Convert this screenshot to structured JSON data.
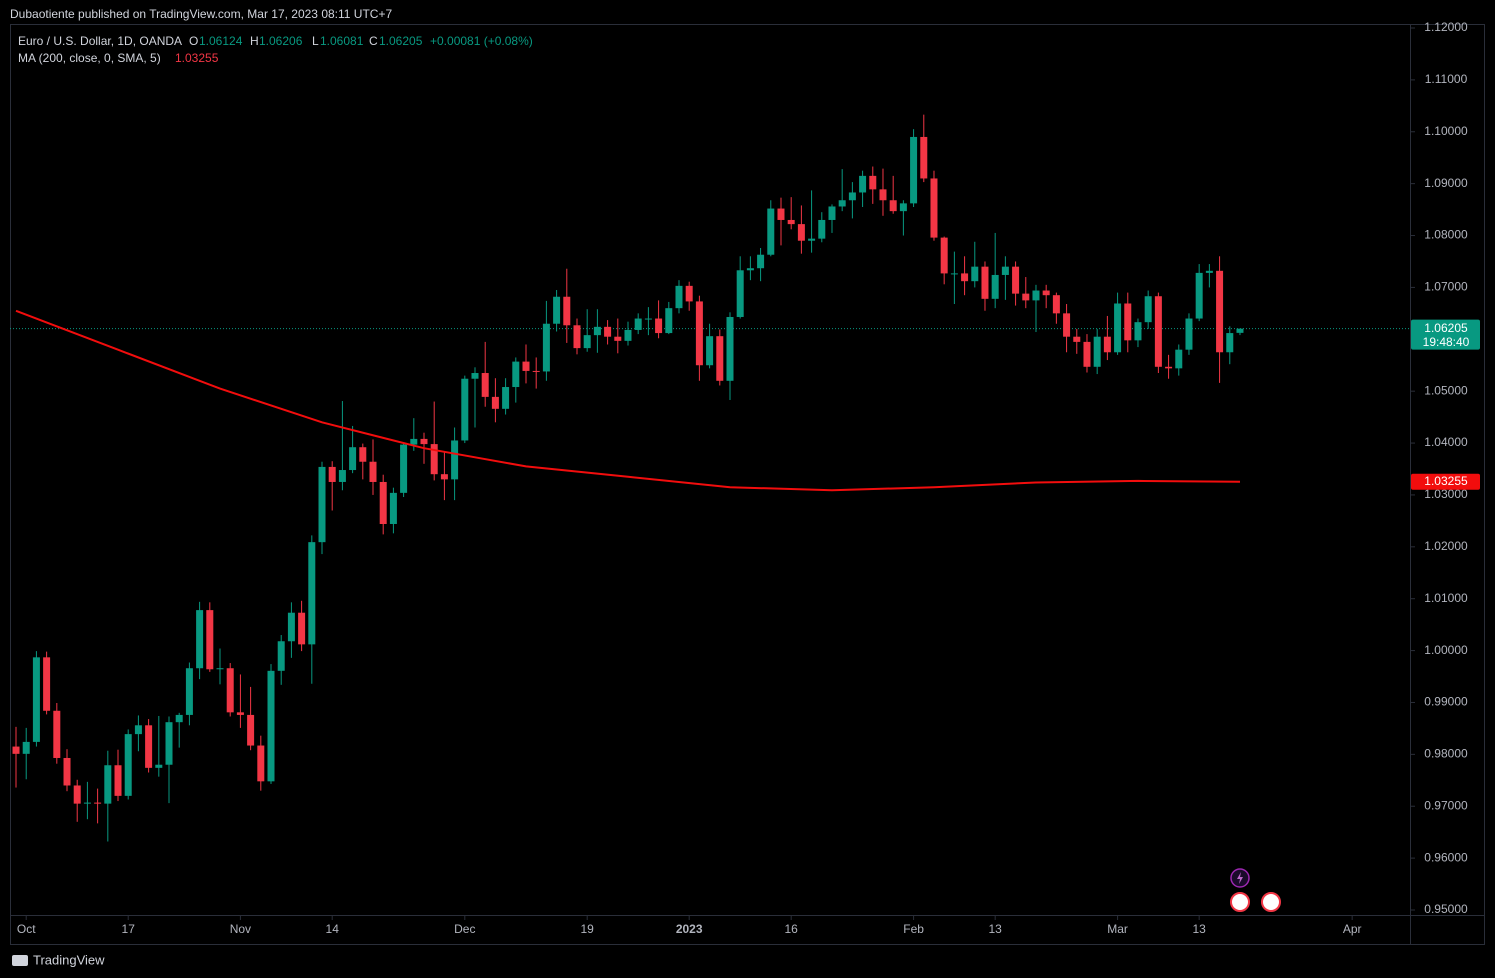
{
  "header": {
    "publisher": "Dubaotiente published on TradingView.com, Mar 17, 2023 08:11 UTC+7"
  },
  "legend": {
    "symbol": "Euro / U.S. Dollar, 1D, OANDA",
    "o": "O",
    "h": "H",
    "l": "L",
    "c": "C",
    "change": "+0.00081 (+0.08%)",
    "ma": "MA (200, close, 0, SMA, 5)"
  },
  "price_timer": "19:48:40",
  "footer": {
    "brand": "TradingView"
  },
  "chart_data": {
    "type": "candlestick",
    "up_color": "#089981",
    "down_color": "#f23645",
    "ma_color": "#f20d0d",
    "ylim": [
      0.95,
      1.12
    ],
    "yticks": [
      {
        "value": 1.12,
        "label": "1.12000"
      },
      {
        "value": 1.11,
        "label": "1.11000"
      },
      {
        "value": 1.1,
        "label": "1.10000"
      },
      {
        "value": 1.09,
        "label": "1.09000"
      },
      {
        "value": 1.08,
        "label": "1.08000"
      },
      {
        "value": 1.07,
        "label": "1.07000"
      },
      {
        "value": 1.06,
        "label": "1.06000"
      },
      {
        "value": 1.05,
        "label": "1.05000"
      },
      {
        "value": 1.04,
        "label": "1.04000"
      },
      {
        "value": 1.03,
        "label": "1.03000"
      },
      {
        "value": 1.02,
        "label": "1.02000"
      },
      {
        "value": 1.01,
        "label": "1.01000"
      },
      {
        "value": 1.0,
        "label": "1.00000"
      },
      {
        "value": 0.99,
        "label": "0.99000"
      },
      {
        "value": 0.98,
        "label": "0.98000"
      },
      {
        "value": 0.97,
        "label": "0.97000"
      },
      {
        "value": 0.96,
        "label": "0.96000"
      },
      {
        "value": 0.95,
        "label": "0.95000"
      }
    ],
    "xlim": [
      -1.57,
      136.67
    ],
    "xticks": [
      {
        "value": 1,
        "label": "Oct"
      },
      {
        "value": 11,
        "label": "17"
      },
      {
        "value": 22,
        "label": "Nov"
      },
      {
        "value": 31,
        "label": "14"
      },
      {
        "value": 44,
        "label": "Dec"
      },
      {
        "value": 56,
        "label": "19"
      },
      {
        "value": 66,
        "label": "2023"
      },
      {
        "value": 76,
        "label": "16"
      },
      {
        "value": 88,
        "label": "Feb"
      },
      {
        "value": 96,
        "label": "13"
      },
      {
        "value": 108,
        "label": "Mar"
      },
      {
        "value": 116,
        "label": "13"
      },
      {
        "value": 131,
        "label": "Apr"
      }
    ],
    "open": [
      0.9815,
      0.9801,
      0.9824,
      0.9987,
      0.9884,
      0.9793,
      0.974,
      0.9705,
      0.9707,
      0.9705,
      0.9779,
      0.972,
      0.9839,
      0.9856,
      0.9774,
      0.978,
      0.9862,
      0.9876,
      0.9966,
      1.0078,
      0.9964,
      0.9966,
      0.9881,
      0.9876,
      0.9817,
      0.9748,
      0.9961,
      1.0018,
      1.0073,
      1.0012,
      1.0209,
      1.0354,
      1.0325,
      1.0348,
      1.0392,
      1.0364,
      1.0325,
      1.0244,
      1.0304,
      1.0397,
      1.0408,
      1.0398,
      1.034,
      1.033,
      1.0405,
      1.0524,
      1.0535,
      1.0489,
      1.0466,
      1.0508,
      1.0557,
      1.0539,
      1.0538,
      1.063,
      1.0682,
      1.0627,
      1.0583,
      1.0608,
      1.0624,
      1.0605,
      1.0597,
      1.0618,
      1.064,
      1.064,
      1.0612,
      1.066,
      1.0703,
      1.0673,
      1.055,
      1.0606,
      1.052,
      1.0643,
      1.0733,
      1.0737,
      1.0763,
      1.0852,
      1.083,
      1.0822,
      1.079,
      1.0794,
      1.083,
      1.0856,
      1.0868,
      1.0883,
      1.0915,
      1.0889,
      1.0868,
      1.0847,
      1.0862,
      1.099,
      1.091,
      1.0796,
      1.0727,
      1.0727,
      1.0712,
      1.074,
      1.0678,
      1.0724,
      1.074,
      1.0688,
      1.0675,
      1.0694,
      1.0685,
      1.065,
      1.0605,
      1.0595,
      1.0547,
      1.0605,
      1.0575,
      1.0669,
      1.0598,
      1.0633,
      1.0683,
      1.0547,
      1.0544,
      1.058,
      1.064,
      1.0728,
      1.0732,
      1.0575,
      1.06124
    ],
    "high": [
      0.9853,
      0.9851,
      0.9999,
      0.9998,
      0.9899,
      0.981,
      0.9751,
      0.9747,
      0.9734,
      0.9807,
      0.9809,
      0.9848,
      0.9875,
      0.9868,
      0.9874,
      0.9873,
      0.988,
      0.9977,
      1.0094,
      1.0093,
      1.0004,
      0.9976,
      0.9954,
      0.993,
      0.9836,
      0.9974,
      1.003,
      1.0093,
      1.0096,
      1.0222,
      1.0364,
      1.0365,
      1.0481,
      1.0433,
      1.0399,
      1.0407,
      1.0339,
      1.0314,
      1.0401,
      1.0448,
      1.042,
      1.048,
      1.0384,
      1.043,
      1.053,
      1.0546,
      1.0595,
      1.0525,
      1.0525,
      1.0565,
      1.059,
      1.0565,
      1.0674,
      1.0695,
      1.0736,
      1.064,
      1.0658,
      1.0658,
      1.0637,
      1.064,
      1.0634,
      1.065,
      1.0662,
      1.0675,
      1.0672,
      1.0714,
      1.0711,
      1.0684,
      1.063,
      1.0619,
      1.0652,
      1.076,
      1.076,
      1.0776,
      1.0868,
      1.0873,
      1.0874,
      1.0858,
      1.0887,
      1.0845,
      1.086,
      1.0928,
      1.0903,
      1.0925,
      1.0933,
      1.0929,
      1.0915,
      1.0868,
      1.1005,
      1.1033,
      1.0925,
      1.0798,
      1.0769,
      1.076,
      1.0788,
      1.075,
      1.0805,
      1.076,
      1.075,
      1.072,
      1.0705,
      1.0705,
      1.069,
      1.0668,
      1.062,
      1.061,
      1.062,
      1.0645,
      1.069,
      1.069,
      1.064,
      1.0694,
      1.069,
      1.057,
      1.059,
      1.065,
      1.0745,
      1.0745,
      1.076,
      1.0625,
      1.06206
    ],
    "low": [
      0.9736,
      0.9752,
      0.9815,
      0.9877,
      0.9782,
      0.9729,
      0.967,
      0.9675,
      0.9667,
      0.9632,
      0.971,
      0.9713,
      0.9806,
      0.9765,
      0.9757,
      0.9706,
      0.9813,
      0.9856,
      0.9945,
      0.9959,
      0.9935,
      0.9873,
      0.9851,
      0.9808,
      0.973,
      0.9743,
      0.9934,
      0.9986,
      0.9999,
      0.9936,
      1.0186,
      1.027,
      1.0309,
      1.0342,
      1.033,
      1.03,
      1.0224,
      1.0226,
      1.0296,
      1.0385,
      1.036,
      1.0328,
      1.029,
      1.029,
      1.04,
      1.043,
      1.047,
      1.044,
      1.0455,
      1.0478,
      1.0515,
      1.0505,
      1.052,
      1.0615,
      1.0593,
      1.0571,
      1.0576,
      1.0574,
      1.059,
      1.0573,
      1.0588,
      1.061,
      1.0608,
      1.0602,
      1.061,
      1.065,
      1.0655,
      1.052,
      1.0544,
      1.0511,
      1.0483,
      1.064,
      1.0714,
      1.0712,
      1.076,
      1.0781,
      1.0812,
      1.0765,
      1.0767,
      1.0787,
      1.0805,
      1.0847,
      1.0833,
      1.0855,
      1.0861,
      1.0838,
      1.0842,
      1.08,
      1.0855,
      1.0903,
      1.079,
      1.0706,
      1.0668,
      1.0685,
      1.07,
      1.0655,
      1.066,
      1.0676,
      1.0665,
      1.066,
      1.0614,
      1.066,
      1.063,
      1.0575,
      1.0572,
      1.0536,
      1.0533,
      1.056,
      1.057,
      1.0575,
      1.0585,
      1.062,
      1.0535,
      1.0524,
      1.053,
      1.057,
      1.0635,
      1.07,
      1.0516,
      1.0552,
      1.06081
    ],
    "close": [
      0.9801,
      0.9824,
      0.9987,
      0.9884,
      0.9793,
      0.974,
      0.9705,
      0.9707,
      0.9705,
      0.9779,
      0.972,
      0.9839,
      0.9856,
      0.9774,
      0.978,
      0.9862,
      0.9876,
      0.9966,
      1.0078,
      0.9964,
      0.9966,
      0.9881,
      0.9876,
      0.9817,
      0.9748,
      0.9961,
      1.0018,
      1.0073,
      1.0012,
      1.0209,
      1.0354,
      1.0325,
      1.0348,
      1.0392,
      1.0364,
      1.0325,
      1.0244,
      1.0304,
      1.0397,
      1.0408,
      1.0398,
      1.034,
      1.033,
      1.0405,
      1.0524,
      1.0535,
      1.0489,
      1.0466,
      1.0508,
      1.0557,
      1.0539,
      1.0538,
      1.063,
      1.0682,
      1.0627,
      1.0583,
      1.0608,
      1.0624,
      1.0605,
      1.0597,
      1.0618,
      1.064,
      1.064,
      1.0612,
      1.066,
      1.0703,
      1.0673,
      1.055,
      1.0606,
      1.052,
      1.0643,
      1.0733,
      1.0737,
      1.0763,
      1.0852,
      1.083,
      1.0822,
      1.079,
      1.0794,
      1.083,
      1.0856,
      1.0868,
      1.0883,
      1.0915,
      1.0889,
      1.0868,
      1.0847,
      1.0862,
      1.099,
      1.091,
      1.0796,
      1.0727,
      1.0727,
      1.0712,
      1.074,
      1.0678,
      1.0724,
      1.074,
      1.0688,
      1.0675,
      1.0694,
      1.0685,
      1.065,
      1.0605,
      1.0595,
      1.0547,
      1.0605,
      1.0575,
      1.0669,
      1.0598,
      1.0633,
      1.0683,
      1.0547,
      1.0544,
      1.058,
      1.064,
      1.0728,
      1.0732,
      1.0575,
      1.0612,
      1.06205
    ],
    "ma_x": [
      0,
      10,
      20,
      30,
      40,
      50,
      60,
      70,
      80,
      90,
      100,
      110,
      120
    ],
    "ma": [
      1.0655,
      1.058,
      1.0505,
      1.044,
      1.039,
      1.0355,
      1.0335,
      1.0315,
      1.0309,
      1.0315,
      1.0324,
      1.0327,
      1.03255
    ]
  }
}
